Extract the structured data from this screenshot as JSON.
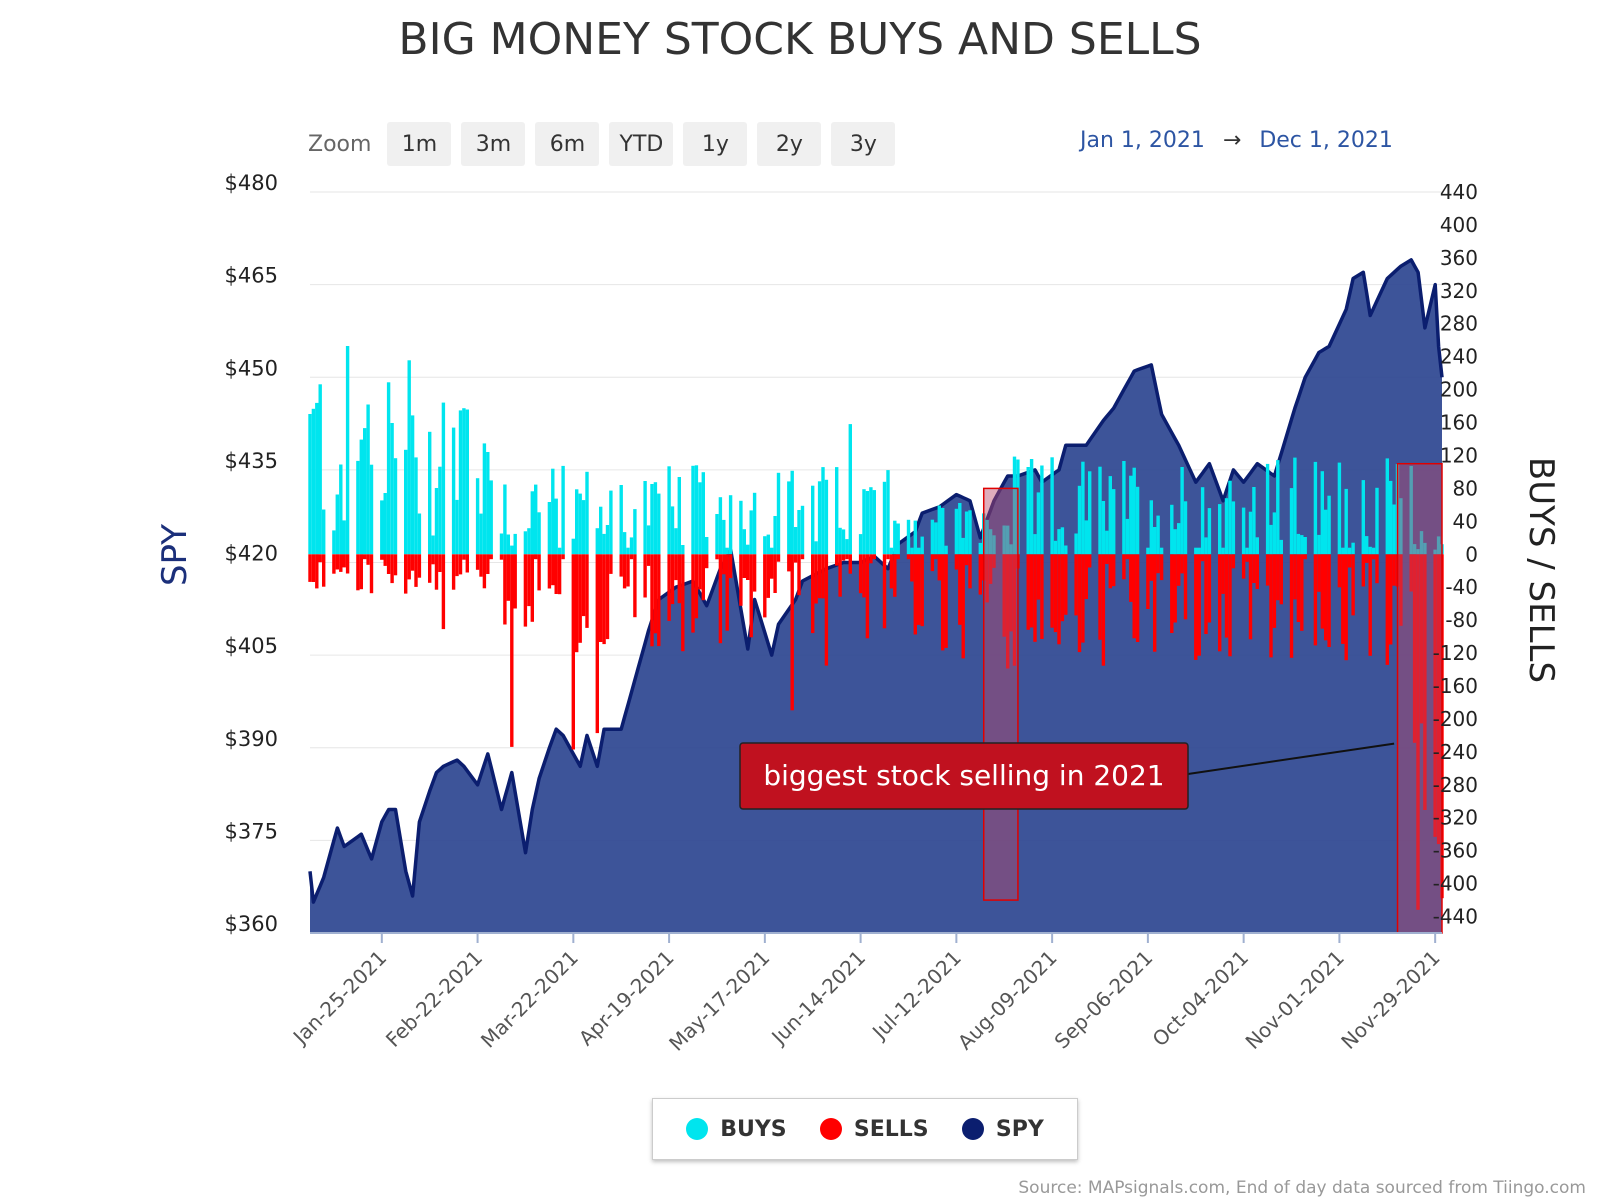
{
  "chart_data": {
    "type": "bar",
    "title": "BIG MONEY STOCK BUYS AND SELLS",
    "y_left_label": "SPY",
    "y_right_label": "BUYS / SELLS",
    "y_left_ticks": [
      "$480",
      "$465",
      "$450",
      "$435",
      "$420",
      "$405",
      "$390",
      "$375",
      "$360"
    ],
    "y_left_range": [
      360,
      480
    ],
    "y_right_ticks": [
      "440",
      "400",
      "360",
      "320",
      "280",
      "240",
      "200",
      "160",
      "120",
      "80",
      "40",
      "0",
      "-40",
      "-80",
      "-120",
      "-160",
      "-200",
      "-240",
      "-280",
      "-320",
      "-360",
      "-400",
      "-440"
    ],
    "y_right_range": [
      -460,
      440
    ],
    "x_ticks": [
      "Jan-25-2021",
      "Feb-22-2021",
      "Mar-22-2021",
      "Apr-19-2021",
      "May-17-2021",
      "Jun-14-2021",
      "Jul-12-2021",
      "Aug-09-2021",
      "Sep-06-2021",
      "Oct-04-2021",
      "Nov-01-2021",
      "Nov-29-2021"
    ],
    "x_range": [
      "2021-01-04",
      "2021-12-01"
    ],
    "spy_keypoints": [
      [
        "2021-01-04",
        370
      ],
      [
        "2021-01-05",
        365
      ],
      [
        "2021-01-08",
        369
      ],
      [
        "2021-01-12",
        377
      ],
      [
        "2021-01-14",
        374
      ],
      [
        "2021-01-19",
        376
      ],
      [
        "2021-01-22",
        372
      ],
      [
        "2021-01-25",
        378
      ],
      [
        "2021-01-27",
        380
      ],
      [
        "2021-01-29",
        380
      ],
      [
        "2021-02-01",
        370
      ],
      [
        "2021-02-03",
        366
      ],
      [
        "2021-02-05",
        378
      ],
      [
        "2021-02-08",
        383
      ],
      [
        "2021-02-10",
        386
      ],
      [
        "2021-02-12",
        387
      ],
      [
        "2021-02-16",
        388
      ],
      [
        "2021-02-18",
        387
      ],
      [
        "2021-02-22",
        384
      ],
      [
        "2021-02-25",
        389
      ],
      [
        "2021-03-01",
        380
      ],
      [
        "2021-03-04",
        386
      ],
      [
        "2021-03-08",
        373
      ],
      [
        "2021-03-10",
        380
      ],
      [
        "2021-03-12",
        385
      ],
      [
        "2021-03-15",
        390
      ],
      [
        "2021-03-17",
        393
      ],
      [
        "2021-03-19",
        392
      ],
      [
        "2021-03-24",
        387
      ],
      [
        "2021-03-26",
        392
      ],
      [
        "2021-03-29",
        387
      ],
      [
        "2021-03-31",
        393
      ],
      [
        "2021-04-05",
        393
      ],
      [
        "2021-04-09",
        401
      ],
      [
        "2021-04-13",
        409
      ],
      [
        "2021-04-16",
        414
      ],
      [
        "2021-04-21",
        416
      ],
      [
        "2021-04-26",
        417
      ],
      [
        "2021-04-30",
        413
      ],
      [
        "2021-05-04",
        419
      ],
      [
        "2021-05-07",
        422
      ],
      [
        "2021-05-12",
        406
      ],
      [
        "2021-05-14",
        414
      ],
      [
        "2021-05-19",
        405
      ],
      [
        "2021-05-21",
        410
      ],
      [
        "2021-05-26",
        414
      ],
      [
        "2021-05-28",
        417
      ],
      [
        "2021-06-04",
        419
      ],
      [
        "2021-06-09",
        420
      ],
      [
        "2021-06-14",
        420
      ],
      [
        "2021-06-18",
        421
      ],
      [
        "2021-06-22",
        419
      ],
      [
        "2021-06-25",
        423
      ],
      [
        "2021-06-30",
        425
      ],
      [
        "2021-07-02",
        428
      ],
      [
        "2021-07-07",
        429
      ],
      [
        "2021-07-12",
        431
      ],
      [
        "2021-07-16",
        430
      ],
      [
        "2021-07-19",
        424
      ],
      [
        "2021-07-23",
        430
      ],
      [
        "2021-07-27",
        434
      ],
      [
        "2021-07-30",
        434
      ],
      [
        "2021-08-04",
        435
      ],
      [
        "2021-08-06",
        433
      ],
      [
        "2021-08-11",
        435
      ],
      [
        "2021-08-13",
        439
      ],
      [
        "2021-08-19",
        439
      ],
      [
        "2021-08-24",
        443
      ],
      [
        "2021-08-27",
        445
      ],
      [
        "2021-09-02",
        451
      ],
      [
        "2021-09-07",
        452
      ],
      [
        "2021-09-10",
        444
      ],
      [
        "2021-09-15",
        439
      ],
      [
        "2021-09-20",
        433
      ],
      [
        "2021-09-24",
        436
      ],
      [
        "2021-09-28",
        430
      ],
      [
        "2021-10-01",
        435
      ],
      [
        "2021-10-04",
        433
      ],
      [
        "2021-10-08",
        436
      ],
      [
        "2021-10-13",
        434
      ],
      [
        "2021-10-19",
        445
      ],
      [
        "2021-10-22",
        450
      ],
      [
        "2021-10-26",
        454
      ],
      [
        "2021-10-29",
        455
      ],
      [
        "2021-11-03",
        461
      ],
      [
        "2021-11-05",
        466
      ],
      [
        "2021-11-08",
        467
      ],
      [
        "2021-11-10",
        460
      ],
      [
        "2021-11-15",
        466
      ],
      [
        "2021-11-19",
        468
      ],
      [
        "2021-11-22",
        469
      ],
      [
        "2021-11-24",
        467
      ],
      [
        "2021-11-26",
        458
      ],
      [
        "2021-11-29",
        465
      ],
      [
        "2021-11-30",
        455
      ],
      [
        "2021-12-01",
        450
      ]
    ],
    "highlights": [
      {
        "from": "2021-07-20",
        "to": "2021-07-30",
        "y_top": 80,
        "y_bottom": -420
      },
      {
        "from": "2021-11-18",
        "to": "2021-12-01",
        "y_top": 110,
        "y_bottom": -460
      }
    ],
    "annotation": {
      "text": "biggest stock selling in 2021",
      "date": "2021-08-18",
      "target_date": "2021-11-17",
      "target_value": -230
    },
    "colors": {
      "buys": "#00e5ee",
      "sells": "#ff0000",
      "spy_line": "#0b1e6f",
      "spy_fill": "#2d4590",
      "annotation_bg": "#c0111f",
      "highlight": "#b84a6a"
    }
  },
  "zoom": {
    "label": "Zoom",
    "buttons": [
      "1m",
      "3m",
      "6m",
      "YTD",
      "1y",
      "2y",
      "3y"
    ]
  },
  "range": {
    "from": "Jan 1, 2021",
    "arrow": "→",
    "to": "Dec 1, 2021"
  },
  "legend": [
    {
      "label": "BUYS",
      "color": "#00e5ee"
    },
    {
      "label": "SELLS",
      "color": "#ff0000"
    },
    {
      "label": "SPY",
      "color": "#0b1e6f"
    }
  ],
  "source": "Source: MAPsignals.com, End of day data sourced from Tiingo.com"
}
